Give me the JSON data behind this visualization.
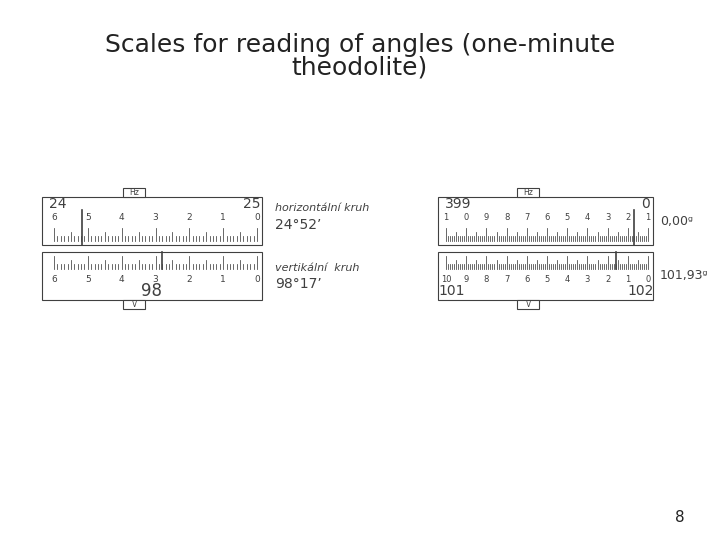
{
  "title_line1": "Scales for reading of angles (one-minute",
  "title_line2": "theodolite)",
  "title_fontsize": 18,
  "page_number": "8",
  "background_color": "#ffffff",
  "line_color": "#404040",
  "left_instrument": {
    "hz_label": "Hz",
    "top_left_num": "24",
    "top_right_num": "25",
    "top_scale_nums": [
      "6",
      "5",
      "4",
      "3",
      "2",
      "1",
      "0"
    ],
    "bottom_scale_nums": [
      "6",
      "5",
      "4",
      "3",
      "2",
      "1",
      "0"
    ],
    "bottom_center_num": "98",
    "v_label": "V",
    "label_right": "horizontální kruh",
    "reading_right": "24°52’",
    "label_right2": "vertikální  kruh",
    "reading_right2": "98°17’"
  },
  "right_instrument": {
    "hz_label": "Hz",
    "top_left_num": "399",
    "top_right_num": "0",
    "top_scale_nums": [
      "1",
      "0",
      "9",
      "8",
      "7",
      "6",
      "5",
      "4",
      "3",
      "2",
      "1"
    ],
    "bottom_scale_nums": [
      "10",
      "9",
      "8",
      "7",
      "6",
      "5",
      "4",
      "3",
      "2",
      "1",
      "0"
    ],
    "bottom_left_num": "101",
    "bottom_right_num": "102",
    "v_label": "V",
    "label_right": "0,00ᵍ",
    "label_right2": "101,93ᵍ"
  }
}
